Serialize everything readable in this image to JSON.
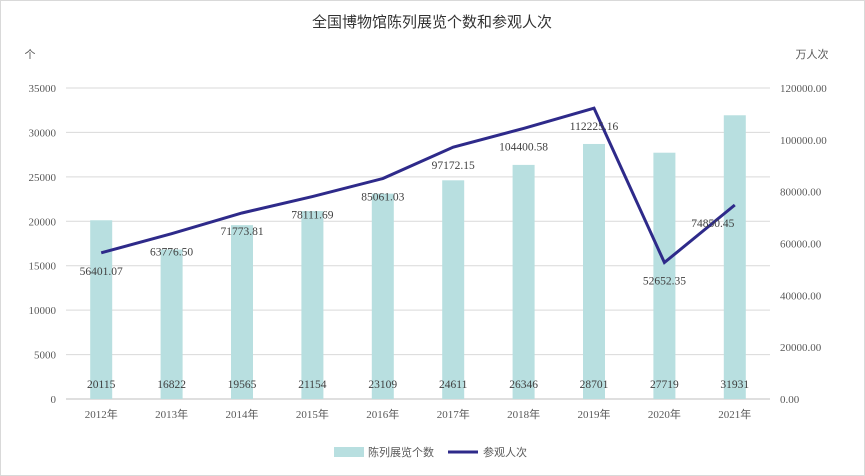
{
  "chart_data": {
    "type": "bar+line",
    "title": "全国博物馆陈列展览个数和参观人次",
    "left_unit": "个",
    "right_unit": "万人次",
    "categories": [
      "2012年",
      "2013年",
      "2014年",
      "2015年",
      "2016年",
      "2017年",
      "2018年",
      "2019年",
      "2020年",
      "2021年"
    ],
    "series": [
      {
        "name": "陈列展览个数",
        "type": "bar",
        "axis": "left",
        "color": "#b8dfe0",
        "values": [
          20115,
          16822,
          19565,
          21154,
          23109,
          24611,
          26346,
          28701,
          27719,
          31931
        ],
        "labels": [
          "20115",
          "16822",
          "19565",
          "21154",
          "23109",
          "24611",
          "26346",
          "28701",
          "27719",
          "31931"
        ]
      },
      {
        "name": "参观人次",
        "type": "line",
        "axis": "right",
        "color": "#2e2a8a",
        "values": [
          56401.07,
          63776.5,
          71773.81,
          78111.69,
          85061.03,
          97172.15,
          104400.58,
          112225.16,
          52652.35,
          74850.45
        ],
        "labels": [
          "56401.07",
          "63776.50",
          "71773.81",
          "78111.69",
          "85061.03",
          "97172.15",
          "104400.58",
          "112225.16",
          "52652.35",
          "74850.45"
        ]
      }
    ],
    "left_axis": {
      "range": [
        0,
        35000
      ],
      "ticks": [
        "0",
        "5000",
        "10000",
        "15000",
        "20000",
        "25000",
        "30000",
        "35000"
      ]
    },
    "right_axis": {
      "range": [
        0,
        120000
      ],
      "ticks": [
        "0.00",
        "20000.00",
        "40000.00",
        "60000.00",
        "80000.00",
        "100000.00",
        "120000.00"
      ]
    },
    "grid": true,
    "legend": "bottom"
  }
}
